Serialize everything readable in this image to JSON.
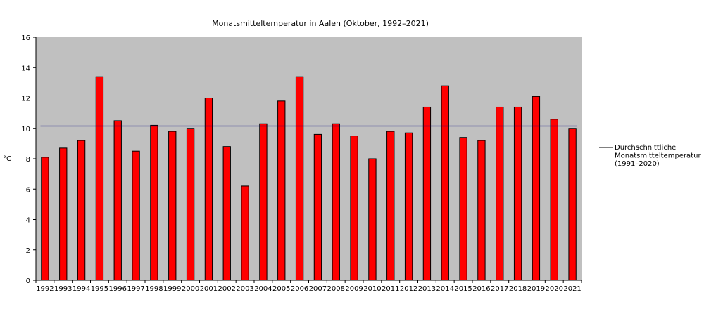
{
  "chart_data": {
    "type": "bar",
    "title": "Monatsmitteltemperatur in Aalen (Oktober, 1992–2021)",
    "ylabel": "°C",
    "xlabel": "",
    "ylim": [
      0,
      16
    ],
    "yticks": [
      0,
      2,
      4,
      6,
      8,
      10,
      12,
      14,
      16
    ],
    "grid": false,
    "legend_position": "right",
    "colors": {
      "plot_bg": "#c0c0c0",
      "bar": "#ff0000",
      "bar_border": "#000000",
      "avg_line": "#000080"
    },
    "categories": [
      "1992",
      "1993",
      "1994",
      "1995",
      "1996",
      "1997",
      "1998",
      "1999",
      "2000",
      "2001",
      "2002",
      "2003",
      "2004",
      "2005",
      "2006",
      "2007",
      "2008",
      "2009",
      "2010",
      "2011",
      "2012",
      "2013",
      "2014",
      "2015",
      "2016",
      "2017",
      "2018",
      "2019",
      "2020",
      "2021"
    ],
    "values": [
      8.1,
      8.7,
      9.2,
      13.4,
      10.5,
      8.5,
      10.2,
      9.8,
      10.0,
      12.0,
      8.8,
      6.2,
      10.3,
      11.8,
      13.4,
      9.6,
      10.3,
      9.5,
      8.0,
      9.8,
      9.7,
      11.4,
      12.8,
      9.4,
      9.2,
      11.4,
      11.4,
      12.1,
      10.6,
      10.0
    ],
    "reference_line": {
      "value": 10.15,
      "legend_lines": [
        "Durchschnittliche",
        "Monatsmitteltemperatur",
        "(1991–2020)"
      ]
    }
  }
}
